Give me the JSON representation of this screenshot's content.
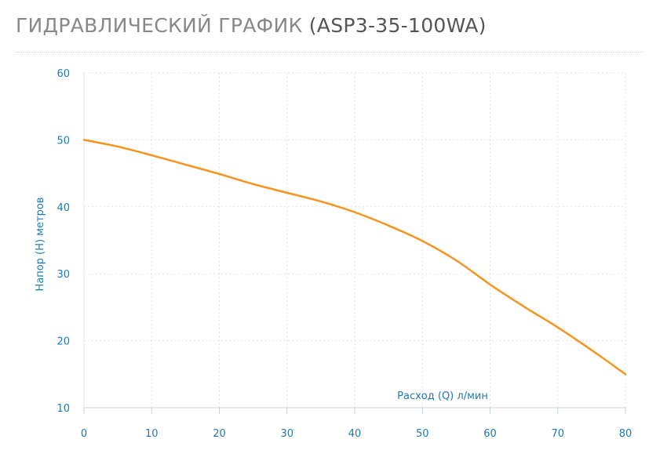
{
  "page": {
    "title_main": "ГИДРАВЛИЧЕСКИЙ ГРАФИК",
    "title_model": "(ASP3-35-100WA)"
  },
  "colors": {
    "line": "#f5941e",
    "axis_text": "#1e7ab5",
    "grid": "#dde3ea"
  },
  "chart_data": {
    "type": "line",
    "title": "ГИДРАВЛИЧЕСКИЙ ГРАФИК (ASP3-35-100WA)",
    "xlabel": "Расход (Q) л/мин",
    "ylabel": "Напор (H) метров",
    "xlim": [
      0,
      80
    ],
    "ylim": [
      10,
      60
    ],
    "xticks": [
      0,
      10,
      20,
      30,
      40,
      50,
      60,
      70,
      80
    ],
    "yticks": [
      10,
      20,
      30,
      40,
      50,
      60
    ],
    "grid": true,
    "series": [
      {
        "x": [
          0,
          5,
          10,
          15,
          20,
          25,
          30,
          35,
          40,
          45,
          50,
          55,
          60,
          65,
          70,
          75,
          80
        ],
        "y": [
          50,
          49,
          47.7,
          46.3,
          44.9,
          43.4,
          42.1,
          40.8,
          39.2,
          37.2,
          34.9,
          32,
          28.4,
          25.1,
          22,
          18.6,
          15
        ]
      }
    ]
  }
}
